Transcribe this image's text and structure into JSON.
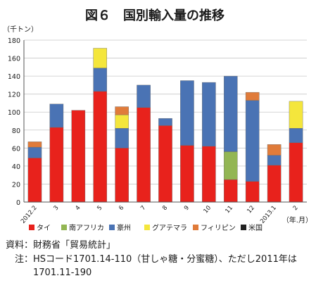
{
  "chart_data": {
    "type": "bar",
    "stacked": true,
    "title": "図６　国別輸入量の推移",
    "ylabel": "（千トン）",
    "xlabel": "（年.月）",
    "ylim": [
      0,
      180
    ],
    "yticks": [
      0,
      20,
      40,
      60,
      80,
      100,
      120,
      140,
      160,
      180
    ],
    "grid": "y",
    "legend_position": "bottom",
    "categories": [
      "2012.2",
      "3",
      "4",
      "5",
      "6",
      "7",
      "8",
      "9",
      "10",
      "11",
      "12",
      "2013.1",
      "2"
    ],
    "series": [
      {
        "name": "タイ",
        "color": "#e8221c",
        "values": [
          49,
          83,
          102,
          123,
          60,
          105,
          85,
          63,
          62,
          25,
          23,
          41,
          66
        ]
      },
      {
        "name": "南アフリカ",
        "color": "#93b653",
        "values": [
          0,
          0,
          0,
          0,
          0,
          0,
          0,
          0,
          0,
          31,
          0,
          0,
          0
        ]
      },
      {
        "name": "豪州",
        "color": "#4a73b4",
        "values": [
          12,
          26,
          0,
          26,
          22,
          25,
          8,
          72,
          71,
          84,
          90,
          11,
          16
        ]
      },
      {
        "name": "グアテマラ",
        "color": "#f4e63c",
        "values": [
          0,
          0,
          0,
          22,
          15,
          0,
          0,
          0,
          0,
          0,
          0,
          0,
          30
        ]
      },
      {
        "name": "フィリピン",
        "color": "#e07b3a",
        "values": [
          6,
          0,
          0,
          0,
          9,
          0,
          0,
          0,
          0,
          0,
          9,
          12,
          0
        ]
      },
      {
        "name": "米国",
        "color": "#222222",
        "values": [
          0,
          0,
          0,
          0,
          0,
          0,
          0,
          0,
          0,
          0,
          0,
          0,
          0
        ]
      }
    ]
  },
  "source": {
    "line1": "資料：財務省「貿易統計」",
    "line2": "　注：HSコード1701.14-110（甘しゃ糖・分蜜糖）、ただし2011年は",
    "line3": "　　　1701.11-190"
  }
}
